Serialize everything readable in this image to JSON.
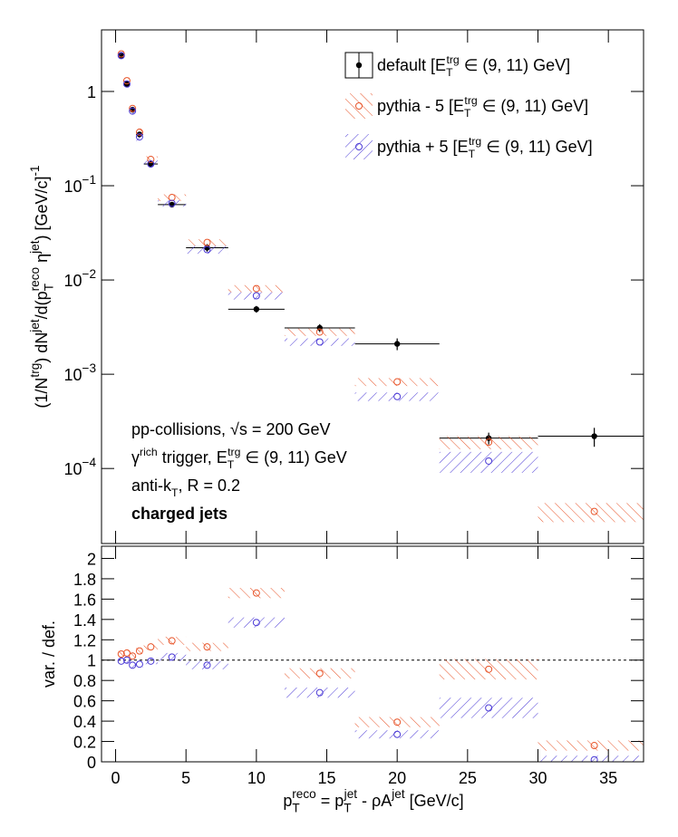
{
  "chart_data": [
    {
      "type": "scatter",
      "log_y": true,
      "legend": "top-right",
      "ylabel": [
        "(1/N",
        {
          "sup": "trg"
        },
        ") dN",
        {
          "sup": "jet"
        },
        "/d(p",
        {
          "sub": "T",
          "sup": "reco"
        },
        " η",
        {
          "sup": "jet"
        },
        ") [GeV/c]",
        {
          "sup": "-1"
        }
      ],
      "xlim": [
        -1,
        37.5
      ],
      "ylim": [
        1.6e-05,
        4.5
      ],
      "yticks": [
        {
          "value": 0.0001,
          "label": [
            "10",
            {
              "sup": "−4"
            }
          ]
        },
        {
          "value": 0.001,
          "label": [
            "10",
            {
              "sup": "−3"
            }
          ]
        },
        {
          "value": 0.01,
          "label": [
            "10",
            {
              "sup": "−2"
            }
          ]
        },
        {
          "value": 0.1,
          "label": [
            "10",
            {
              "sup": "−1"
            }
          ]
        },
        1
      ],
      "x": [
        0.4,
        0.8,
        1.2,
        1.7,
        2.5,
        4,
        6.5,
        10,
        14.5,
        20,
        26.5,
        34
      ],
      "x_errors": [
        0.2,
        0.2,
        0.2,
        0.25,
        0.5,
        1,
        1.5,
        2,
        2.5,
        3,
        3.5,
        4
      ],
      "series": [
        {
          "name": [
            "default [E",
            {
              "sub": "T",
              "sup": "trg"
            },
            " ∈ (9, 11) GeV]"
          ],
          "color": "#000000",
          "marker": "filled",
          "values": [
            2.4,
            1.2,
            0.64,
            0.35,
            0.17,
            0.063,
            0.022,
            0.0049,
            0.0031,
            0.0021,
            0.00021,
            0.00022
          ],
          "errors": [
            0.05,
            0.03,
            0.02,
            0.01,
            0.005,
            0.003,
            0.002,
            0.0004,
            0.0003,
            0.0003,
            3e-05,
            5e-05
          ]
        },
        {
          "name": [
            "pythia - 5 [E",
            {
              "sub": "T",
              "sup": "trg"
            },
            " ∈ (9, 11) GeV]"
          ],
          "color": "#e8552a",
          "marker": "open",
          "values": [
            2.5,
            1.3,
            0.66,
            0.37,
            0.19,
            0.075,
            0.025,
            0.0081,
            0.0028,
            0.00083,
            0.00019,
            3.5e-05
          ],
          "errors": [
            0.2,
            0.1,
            0.05,
            0.03,
            0.015,
            0.006,
            0.002,
            0.0007,
            0.00025,
            8e-05,
            3e-05,
            8e-06
          ]
        },
        {
          "name": [
            "pythia + 5 [E",
            {
              "sub": "T",
              "sup": "trg"
            },
            " ∈ (9, 11) GeV]"
          ],
          "color": "#4b3ad6",
          "marker": "open",
          "values": [
            2.4,
            1.2,
            0.62,
            0.33,
            0.17,
            0.065,
            0.021,
            0.0068,
            0.0022,
            0.00058,
            0.00012,
            null
          ],
          "errors": [
            0.2,
            0.1,
            0.05,
            0.03,
            0.015,
            0.005,
            0.002,
            0.0006,
            0.0002,
            6e-05,
            3e-05,
            null
          ]
        }
      ],
      "annotations": [
        [
          "pp-collisions, √s = 200 GeV"
        ],
        [
          "γ",
          {
            "sup": "rich"
          },
          " trigger, E",
          {
            "sub": "T",
            "sup": "trg"
          },
          " ∈ (9, 11) GeV"
        ],
        [
          "anti-k",
          {
            "sub": "T"
          },
          ", R = 0.2"
        ],
        "charged jets"
      ]
    },
    {
      "type": "scatter",
      "log_y": false,
      "xlabel": [
        "p",
        {
          "sub": "T",
          "sup": "reco"
        },
        " = p",
        {
          "sub": "T",
          "sup": "jet"
        },
        " - ρA",
        {
          "sup": "jet"
        },
        " [GeV/c]"
      ],
      "ylabel": "var. / def.",
      "xlim": [
        -1,
        37.5
      ],
      "ylim": [
        0,
        2.12
      ],
      "xticks": [
        0,
        5,
        10,
        15,
        20,
        25,
        30,
        35
      ],
      "yticks": [
        0,
        0.2,
        0.4,
        0.6,
        0.8,
        1,
        1.2,
        1.4,
        1.6,
        1.8,
        2
      ],
      "reference_line": 1,
      "x": [
        0.4,
        0.8,
        1.2,
        1.7,
        2.5,
        4,
        6.5,
        10,
        14.5,
        20,
        26.5,
        34
      ],
      "x_errors": [
        0.2,
        0.2,
        0.2,
        0.25,
        0.5,
        1,
        1.5,
        2,
        2.5,
        3,
        3.5,
        4
      ],
      "series": [
        {
          "color": "#e8552a",
          "marker": "open",
          "values": [
            1.06,
            1.07,
            1.04,
            1.09,
            1.13,
            1.19,
            1.13,
            1.66,
            0.87,
            0.39,
            0.91,
            0.16
          ],
          "errors": [
            0.03,
            0.03,
            0.03,
            0.03,
            0.03,
            0.04,
            0.04,
            0.05,
            0.05,
            0.05,
            0.1,
            0.05
          ]
        },
        {
          "color": "#4b3ad6",
          "marker": "open",
          "values": [
            0.99,
            1.0,
            0.95,
            0.96,
            0.99,
            1.03,
            0.95,
            1.37,
            0.68,
            0.27,
            0.53,
            0.02
          ],
          "errors": [
            0.03,
            0.03,
            0.03,
            0.03,
            0.03,
            0.04,
            0.04,
            0.05,
            0.05,
            0.04,
            0.1,
            0.04
          ]
        }
      ]
    }
  ]
}
